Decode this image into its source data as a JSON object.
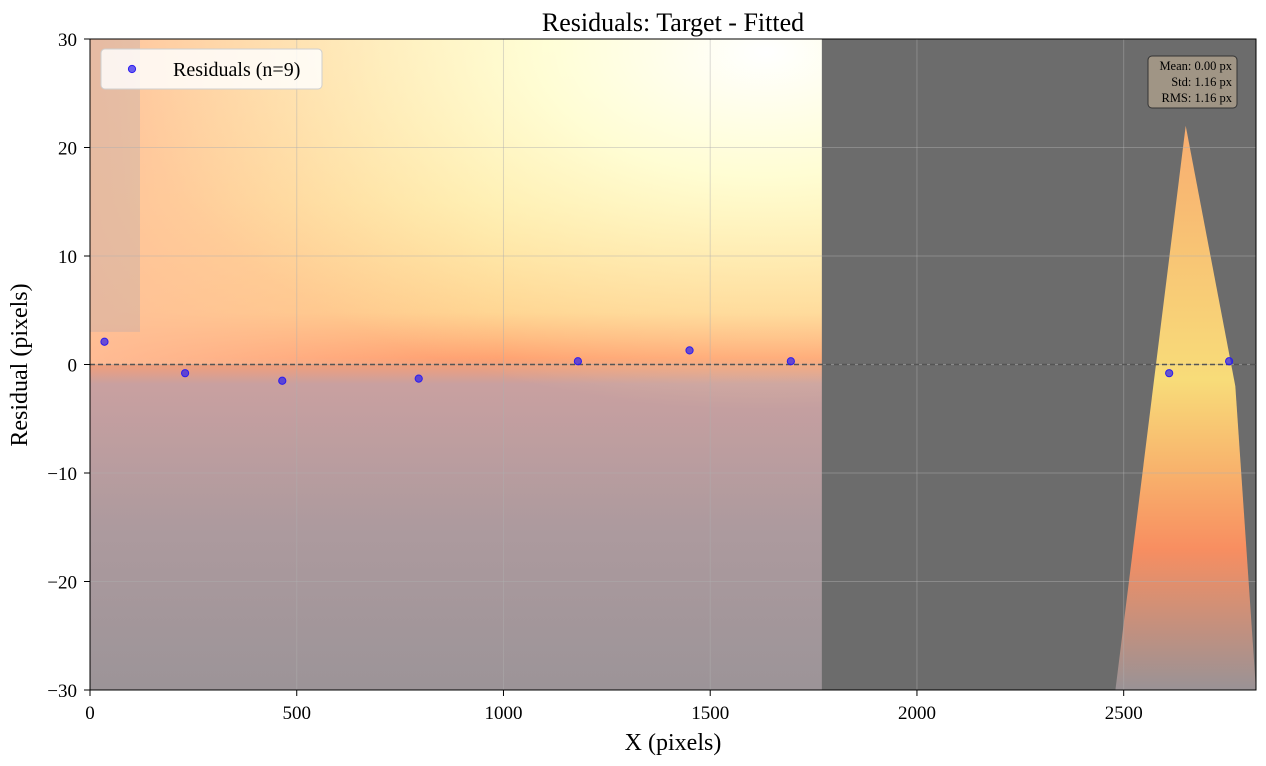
{
  "chart_data": {
    "type": "scatter",
    "title": "Residuals: Target - Fitted",
    "xlabel": "X (pixels)",
    "ylabel": "Residual (pixels)",
    "xlim": [
      0,
      2820
    ],
    "ylim": [
      -30,
      30
    ],
    "xticks": [
      0,
      500,
      1000,
      1500,
      2000,
      2500
    ],
    "yticks": [
      -30,
      -20,
      -10,
      0,
      10,
      20,
      30
    ],
    "xtick_labels": [
      "0",
      "500",
      "1000",
      "1500",
      "2000",
      "2500"
    ],
    "ytick_labels": [
      "−30",
      "−20",
      "−10",
      "0",
      "10",
      "20",
      "30"
    ],
    "grid": true,
    "reference_line": {
      "y": 0,
      "style": "dashed",
      "color": "#555555"
    },
    "legend": {
      "position": "top-left",
      "entries": [
        "Residuals (n=9)"
      ]
    },
    "series": [
      {
        "name": "Residuals (n=9)",
        "color": "#2a1cf0",
        "points": [
          {
            "x": 35,
            "y": 2.1
          },
          {
            "x": 230,
            "y": -0.8
          },
          {
            "x": 465,
            "y": -1.5
          },
          {
            "x": 795,
            "y": -1.3
          },
          {
            "x": 1180,
            "y": 0.3
          },
          {
            "x": 1450,
            "y": 1.3
          },
          {
            "x": 1695,
            "y": 0.3
          },
          {
            "x": 2610,
            "y": -0.8
          },
          {
            "x": 2755,
            "y": 0.3
          }
        ]
      }
    ],
    "annotation": {
      "position": "top-right",
      "lines": [
        "Mean: 0.00 px",
        "Std: 1.16 px",
        "RMS: 1.16 px"
      ]
    },
    "background_image": "sunset-gradient-photo"
  }
}
